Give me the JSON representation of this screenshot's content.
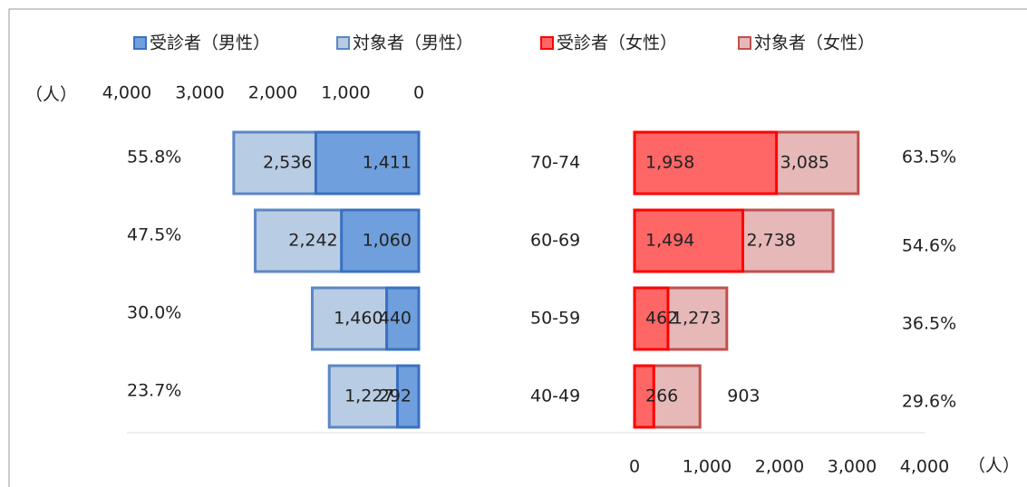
{
  "chart_data": {
    "type": "butterfly",
    "categories": [
      "70-74",
      "60-69",
      "50-59",
      "40-49"
    ],
    "series": [
      {
        "name": "受診者（男性）",
        "side": "left",
        "color": "#6f9fdc",
        "stroke": "#3a70c0",
        "values": [
          1411,
          1060,
          440,
          292
        ]
      },
      {
        "name": "対象者（男性）",
        "side": "left",
        "color": "#b8cce4",
        "stroke": "#5b87c5",
        "values": [
          2536,
          2242,
          1460,
          1227
        ]
      },
      {
        "name": "受診者（女性）",
        "side": "right",
        "color": "#ff6666",
        "stroke": "#ff0000",
        "values": [
          1958,
          1494,
          462,
          266
        ]
      },
      {
        "name": "対象者（女性）",
        "side": "right",
        "color": "#e6b8b8",
        "stroke": "#c0504d",
        "values": [
          3085,
          2738,
          1273,
          903
        ]
      }
    ],
    "value_labels": [
      [
        "1,411",
        "1,060",
        "440",
        "292"
      ],
      [
        "2,536",
        "2,242",
        "1,460",
        "1,227"
      ],
      [
        "1,958",
        "1,494",
        "462",
        "266"
      ],
      [
        "3,085",
        "2,738",
        "1,273",
        "903"
      ]
    ],
    "rates": {
      "male": {
        "values": [
          55.8,
          47.5,
          30.0,
          23.7
        ],
        "value_labels": [
          "55.8%",
          "47.5%",
          "30.0%",
          "23.7%"
        ]
      },
      "female": {
        "values": [
          63.5,
          54.6,
          36.5,
          29.6
        ],
        "value_labels": [
          "63.5%",
          "54.6%",
          "36.5%",
          "29.6%"
        ]
      }
    },
    "x_unit": "（人）",
    "left_xlim": [
      0,
      4000
    ],
    "left_xticks": [
      {
        "value": 4000,
        "label": "4,000"
      },
      {
        "value": 3000,
        "label": "3,000"
      },
      {
        "value": 2000,
        "label": "2,000"
      },
      {
        "value": 1000,
        "label": "1,000"
      },
      0
    ],
    "right_xlim": [
      0,
      4000
    ],
    "right_xticks": [
      0,
      {
        "value": 1000,
        "label": "1,000"
      },
      {
        "value": 2000,
        "label": "2,000"
      },
      {
        "value": 3000,
        "label": "3,000"
      },
      {
        "value": 4000,
        "label": "4,000"
      }
    ]
  }
}
